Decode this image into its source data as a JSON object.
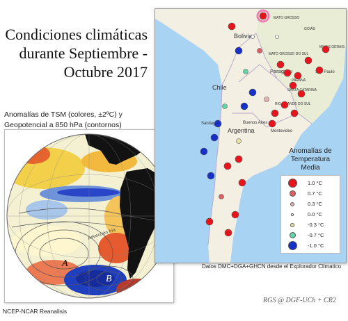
{
  "title": {
    "line1": "Condiciones climáticas",
    "line2": "durante Septiembre -",
    "line3": "Octubre 2017"
  },
  "globe_panel": {
    "caption_line1": "Anomalías de TSM (colores, ±2ºC) y",
    "caption_line2": "Geopotencial a 850 hPa (contornos)",
    "label_a": "A",
    "label_b": "B",
    "contour_label": "Advección fría",
    "source": "NCEP-NCAR Reanalisis",
    "colors": {
      "warm": "#d62a1e",
      "cool": "#1f3fbf",
      "land": "#121212"
    }
  },
  "map_panel": {
    "place_labels": {
      "bolivia": "Bolivia",
      "paraguay": "Paraguay",
      "chile": "Chile",
      "argentina": "Argentina",
      "santiago": "Santiago",
      "buenos_aires": "Buenos Aires",
      "montevideo": "Montevideo",
      "sao_paulo": "São Paulo",
      "mato_grosso_sul": "MATO GROSSO DO SUL",
      "parana": "PARANÁ",
      "santa_catarina": "SANTA CATARINA",
      "mato_grosso": "MATO GROSSO",
      "goias": "GOIÁS",
      "minas_gerais": "MINAS GERAIS",
      "rio_grande_sul": "RIO GRANDE DO SUL"
    },
    "credit": "Datos DMC+DGA+GHCN desde el Explorador Climatico",
    "colors": {
      "ocean": "#a9d3f3",
      "land": "#f3efe3",
      "brazil": "#e9edd5",
      "pin": "#f07fb6"
    }
  },
  "legend": {
    "title_line1": "Anomalías de",
    "title_line2": "Temperatura Media",
    "items": [
      {
        "label": "1.0 °C",
        "color": "#e8141c",
        "size": 13
      },
      {
        "label": "0.7 °C",
        "color": "#e05e66",
        "size": 9
      },
      {
        "label": "0.3 °C",
        "color": "#e6b2b2",
        "size": 6
      },
      {
        "label": "0.0 °C",
        "color": "#ffffff",
        "size": 4
      },
      {
        "label": "-0.3 °C",
        "color": "#e8e3a8",
        "size": 6
      },
      {
        "label": "-0.7 °C",
        "color": "#62d6a6",
        "size": 9
      },
      {
        "label": "-1.0 °C",
        "color": "#1630c8",
        "size": 13
      }
    ]
  },
  "signature": "RGS @ DGF-UCh + CR2"
}
